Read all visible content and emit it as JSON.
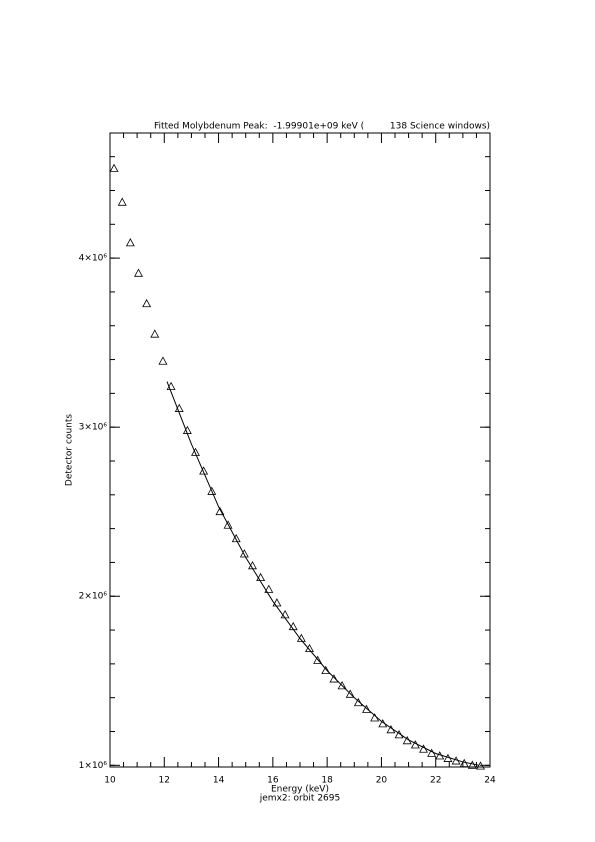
{
  "chart_data": {
    "type": "scatter",
    "title": "Fitted Molybdenum Peak:  -1.99901e+09 keV (         138 Science windows)",
    "xlabel": "Energy (keV)",
    "subtitle": "jemx2: orbit 2695",
    "ylabel": "Detector counts",
    "xlim": [
      10,
      24
    ],
    "xticks": [
      10,
      12,
      14,
      16,
      18,
      20,
      22,
      24
    ],
    "x_minor": 4,
    "ylim": [
      990000,
      4740000
    ],
    "yticks": [
      {
        "value": 1000000,
        "label": "1×10⁶"
      },
      {
        "value": 2000000,
        "label": "2×10⁶"
      },
      {
        "value": 3000000,
        "label": "3×10⁶"
      },
      {
        "value": 4000000,
        "label": "4×10⁶"
      }
    ],
    "y_minor": 5,
    "color": "#000000",
    "marker": "triangle",
    "series": [
      {
        "type": "scatter",
        "x": [
          10.15,
          10.45,
          10.75,
          11.05,
          11.35,
          11.65,
          11.95,
          12.25,
          12.55,
          12.85,
          13.15,
          13.45,
          13.75,
          14.05,
          14.35,
          14.65,
          14.95,
          15.25,
          15.55,
          15.85,
          16.15,
          16.45,
          16.75,
          17.05,
          17.35,
          17.65,
          17.95,
          18.25,
          18.55,
          18.85,
          19.15,
          19.45,
          19.75,
          20.05,
          20.35,
          20.65,
          20.95,
          21.25,
          21.55,
          21.85,
          22.15,
          22.45,
          22.75,
          23.05,
          23.35,
          23.65
        ],
        "values": [
          4530000,
          4330000,
          4090000,
          3910000,
          3730000,
          3550000,
          3390000,
          3240000,
          3110000,
          2980000,
          2850000,
          2740000,
          2620000,
          2500000,
          2420000,
          2340000,
          2250000,
          2180000,
          2110000,
          2040000,
          1960000,
          1890000,
          1820000,
          1750000,
          1690000,
          1620000,
          1560000,
          1510000,
          1470000,
          1420000,
          1370000,
          1330000,
          1280000,
          1245000,
          1210000,
          1180000,
          1145000,
          1120000,
          1095000,
          1070000,
          1055000,
          1040000,
          1025000,
          1010000,
          1000000,
          995000
        ]
      },
      {
        "type": "line",
        "x": [
          12.1,
          13,
          14,
          15,
          16,
          17,
          18,
          19,
          20,
          21,
          22,
          23,
          23.6
        ],
        "values": [
          3270000,
          2900000,
          2530000,
          2230000,
          1970000,
          1750000,
          1560000,
          1400000,
          1260000,
          1150000,
          1070000,
          1020000,
          1000000
        ]
      }
    ]
  }
}
